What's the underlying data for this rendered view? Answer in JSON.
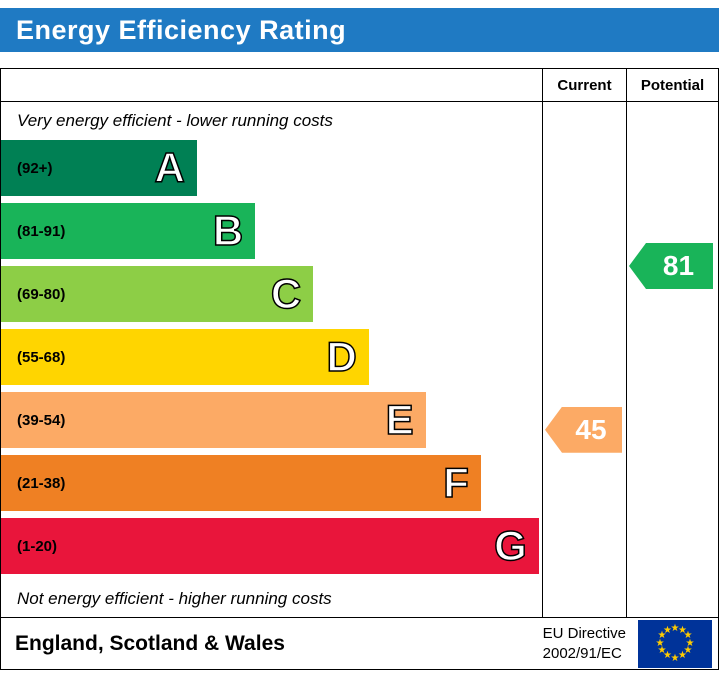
{
  "title": "Energy Efficiency Rating",
  "table": {
    "current_header": "Current",
    "potential_header": "Potential",
    "top_note": "Very energy efficient - lower running costs",
    "bottom_note": "Not energy efficient - higher running costs"
  },
  "chart_data": {
    "type": "bar",
    "title": "Energy Efficiency Rating",
    "bands": [
      {
        "letter": "A",
        "range": "(92+)",
        "min": 92,
        "max": 100,
        "color": "#008054",
        "width_pct": 36.2
      },
      {
        "letter": "B",
        "range": "(81-91)",
        "min": 81,
        "max": 91,
        "color": "#19b459",
        "width_pct": 47.0
      },
      {
        "letter": "C",
        "range": "(69-80)",
        "min": 69,
        "max": 80,
        "color": "#8dce46",
        "width_pct": 57.7
      },
      {
        "letter": "D",
        "range": "(55-68)",
        "min": 55,
        "max": 68,
        "color": "#ffd500",
        "width_pct": 68.0
      },
      {
        "letter": "E",
        "range": "(39-54)",
        "min": 39,
        "max": 54,
        "color": "#fcaa65",
        "width_pct": 78.5
      },
      {
        "letter": "F",
        "range": "(21-38)",
        "min": 21,
        "max": 38,
        "color": "#ef8023",
        "width_pct": 88.7
      },
      {
        "letter": "G",
        "range": "(1-20)",
        "min": 1,
        "max": 20,
        "color": "#e9153b",
        "width_pct": 99.4
      }
    ],
    "current": {
      "value": 45,
      "band": "E",
      "color": "#fcaa65",
      "label": "Current"
    },
    "potential": {
      "value": 81,
      "band": "B",
      "color": "#19b459",
      "label": "Potential"
    }
  },
  "footer": {
    "region": "England, Scotland & Wales",
    "directive_line1": "EU Directive",
    "directive_line2": "2002/91/EC"
  },
  "colors": {
    "banner_bg": "#1f7ac3",
    "flag_bg": "#003399",
    "flag_star": "#ffcc00"
  }
}
